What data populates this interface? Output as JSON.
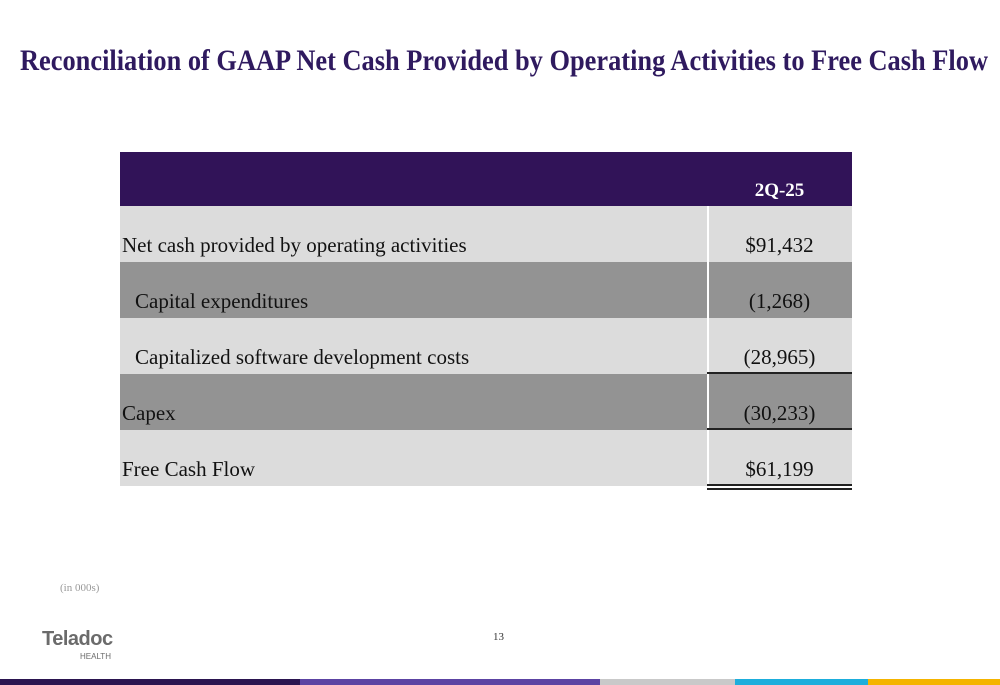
{
  "title": "Reconciliation of GAAP Net Cash Provided by Operating Activities to Free Cash Flow",
  "table": {
    "column_header": "2Q-25",
    "rows": [
      [
        "Net cash provided by operating activities",
        "$91,432"
      ],
      [
        "Capital expenditures",
        "(1,268)"
      ],
      [
        "Capitalized software development costs",
        "(28,965)"
      ],
      [
        "Capex",
        "(30,233)"
      ],
      [
        "Free Cash Flow",
        "$61,199"
      ]
    ]
  },
  "footnote": "(in 000s)",
  "page_number": "13",
  "logo": {
    "name": "Teladoc",
    "sub": "HEALTH"
  }
}
